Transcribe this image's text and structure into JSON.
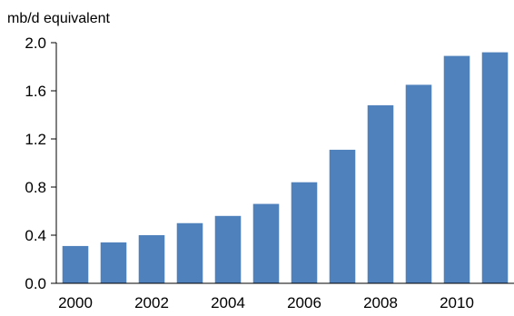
{
  "chart_data": {
    "type": "bar",
    "ylabel": "mb/d equivalent",
    "categories": [
      "2000",
      "2001",
      "2002",
      "2003",
      "2004",
      "2005",
      "2006",
      "2007",
      "2008",
      "2009",
      "2010",
      "2011"
    ],
    "x_tick_labels": [
      "2000",
      "2002",
      "2004",
      "2006",
      "2008",
      "2010"
    ],
    "series": [
      {
        "values": [
          0.31,
          0.34,
          0.4,
          0.5,
          0.56,
          0.66,
          0.84,
          1.11,
          1.48,
          1.65,
          1.89,
          1.92
        ],
        "color": "#4F81BD"
      }
    ],
    "ylim": [
      0,
      2.0
    ],
    "y_ticks": [
      "0.0",
      "0.4",
      "0.8",
      "1.2",
      "1.6",
      "2.0"
    ],
    "grid": false,
    "legend": "none"
  }
}
